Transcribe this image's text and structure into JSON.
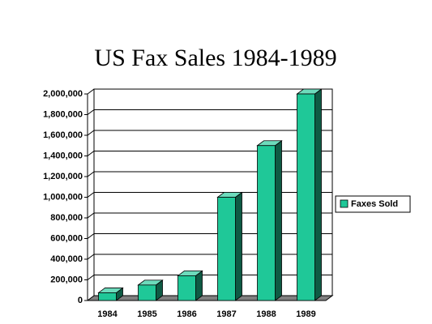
{
  "chart_data": {
    "type": "bar",
    "title": "US Fax Sales 1984-1989",
    "categories": [
      "1984",
      "1985",
      "1986",
      "1987",
      "1988",
      "1989"
    ],
    "series": [
      {
        "name": "Faxes Sold",
        "color": "#1fc898",
        "values": [
          75000,
          150000,
          240000,
          1000000,
          1500000,
          2000000
        ]
      }
    ],
    "ylim": [
      0,
      2000000
    ],
    "yticks": [
      0,
      {
        "value": 200000,
        "label": "200,000"
      },
      {
        "value": 400000,
        "label": "400,000"
      },
      {
        "value": 600000,
        "label": "600,000"
      },
      {
        "value": 800000,
        "label": "800,000"
      },
      {
        "value": 1000000,
        "label": "1,000,000"
      },
      {
        "value": 1200000,
        "label": "1,200,000"
      },
      {
        "value": 1400000,
        "label": "1,400,000"
      },
      {
        "value": 1600000,
        "label": "1,600,000"
      },
      {
        "value": 1800000,
        "label": "1,800,000"
      },
      {
        "value": 2000000,
        "label": "2,000,000"
      }
    ],
    "grid": true,
    "legend": "right"
  }
}
